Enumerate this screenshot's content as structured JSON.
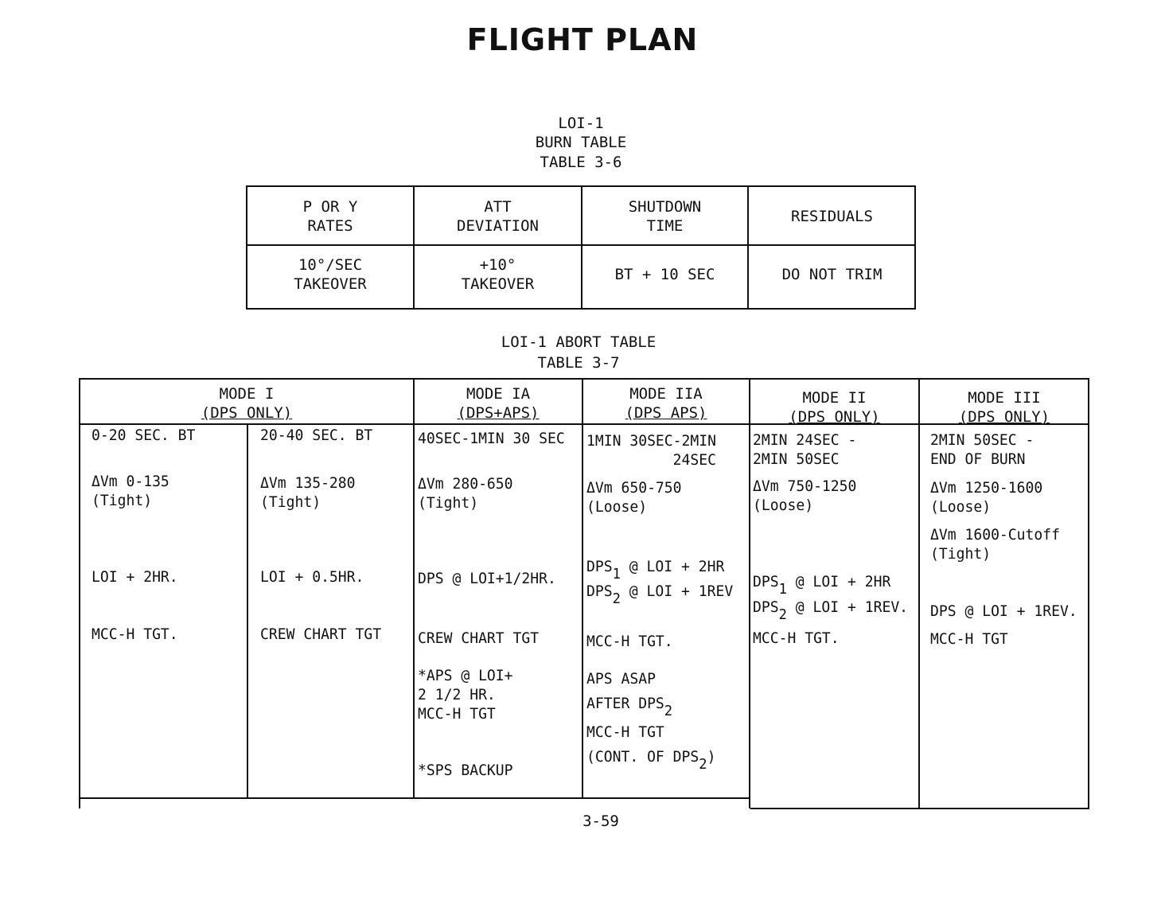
{
  "page_title": "FLIGHT PLAN",
  "burn_table": {
    "caption": [
      "LOI-1",
      "BURN TABLE",
      "TABLE 3-6"
    ],
    "headers": [
      [
        "P OR Y",
        "RATES"
      ],
      [
        "ATT",
        "DEVIATION"
      ],
      [
        "SHUTDOWN",
        "TIME"
      ],
      [
        "RESIDUALS"
      ]
    ],
    "values": [
      [
        "10°/SEC",
        "TAKEOVER"
      ],
      [
        "+10°",
        "TAKEOVER"
      ],
      [
        "BT + 10 SEC"
      ],
      [
        "DO NOT TRIM"
      ]
    ]
  },
  "abort_table": {
    "caption": [
      "LOI-1 ABORT TABLE",
      "TABLE 3-7"
    ],
    "modes": [
      {
        "name": "MODE I",
        "engines": "(DPS ONLY)"
      },
      {
        "name": "MODE IA",
        "engines": "(DPS+APS)"
      },
      {
        "name": "MODE IIA",
        "engines": "(DPS APS)"
      },
      {
        "name": "MODE II",
        "engines": "(DPS ONLY)"
      },
      {
        "name": "MODE III",
        "engines": "(DPS ONLY)"
      }
    ],
    "columns": [
      [
        [
          [
            {
              "t": "0-20 SEC. BT"
            }
          ]
        ],
        [
          [
            {
              "t": "ΔVm 0-135"
            }
          ],
          [
            {
              "t": "(Tight)"
            }
          ]
        ],
        [
          [
            {
              "t": "LOI + 2HR."
            }
          ]
        ],
        [
          [
            {
              "t": "MCC-H TGT."
            }
          ]
        ]
      ],
      [
        [
          [
            {
              "t": "20-40 SEC. BT"
            }
          ]
        ],
        [
          [
            {
              "t": "ΔVm 135-280"
            }
          ],
          [
            {
              "t": "(Tight)"
            }
          ]
        ],
        [
          [
            {
              "t": "LOI + 0.5HR."
            }
          ]
        ],
        [
          [
            {
              "t": "CREW CHART TGT"
            }
          ]
        ]
      ],
      [
        [
          [
            {
              "t": "40SEC-1MIN 30 SEC"
            }
          ]
        ],
        [
          [
            {
              "t": "ΔVm 280-650"
            }
          ],
          [
            {
              "t": "(Tight)"
            }
          ]
        ],
        [
          [
            {
              "t": "DPS @ LOI+1/2HR."
            }
          ]
        ],
        [
          [
            {
              "t": "CREW CHART TGT"
            }
          ]
        ],
        [
          [
            {
              "t": "*APS @ LOI+"
            }
          ],
          [
            {
              "t": "2 1/2 HR."
            }
          ],
          [
            {
              "t": "MCC-H TGT"
            }
          ]
        ],
        [
          [
            {
              "t": "*SPS BACKUP"
            }
          ]
        ]
      ],
      [
        [
          [
            {
              "t": "1MIN 30SEC-2MIN"
            }
          ],
          [
            {
              "t": "          24SEC"
            }
          ]
        ],
        [
          [
            {
              "t": "ΔVm 650-750"
            }
          ],
          [
            {
              "t": "(Loose)"
            }
          ]
        ],
        [
          [
            {
              "t": "DPS"
            },
            {
              "t": "1",
              "sub": true
            },
            {
              "t": " @ LOI + 2HR"
            }
          ],
          [
            {
              "t": "DPS"
            },
            {
              "t": "2",
              "sub": true
            },
            {
              "t": " @ LOI + 1REV"
            }
          ]
        ],
        [
          [
            {
              "t": "MCC-H TGT."
            }
          ]
        ],
        [
          [
            {
              "t": "APS ASAP"
            }
          ],
          [
            {
              "t": "AFTER DPS"
            },
            {
              "t": "2",
              "sub": true
            }
          ]
        ],
        [
          [
            {
              "t": "MCC-H TGT"
            }
          ],
          [
            {
              "t": "(CONT. OF DPS"
            },
            {
              "t": "2",
              "sub": true
            },
            {
              "t": ")"
            }
          ]
        ]
      ],
      [
        [
          [
            {
              "t": "2MIN 24SEC -"
            }
          ],
          [
            {
              "t": "2MIN 50SEC"
            }
          ]
        ],
        [
          [
            {
              "t": "ΔVm 750-1250"
            }
          ],
          [
            {
              "t": "(Loose)"
            }
          ]
        ],
        [
          [
            {
              "t": "DPS"
            },
            {
              "t": "1",
              "sub": true
            },
            {
              "t": " @ LOI + 2HR"
            }
          ]
        ],
        [
          [
            {
              "t": "DPS"
            },
            {
              "t": "2",
              "sub": true
            },
            {
              "t": " @ LOI + 1REV."
            }
          ]
        ],
        [
          [
            {
              "t": "MCC-H TGT."
            }
          ]
        ]
      ],
      [
        [
          [
            {
              "t": "2MIN 50SEC -"
            }
          ],
          [
            {
              "t": "END OF BURN"
            }
          ]
        ],
        [
          [
            {
              "t": "ΔVm 1250-1600"
            }
          ],
          [
            {
              "t": "(Loose)"
            }
          ]
        ],
        [
          [
            {
              "t": "ΔVm 1600-Cutoff"
            }
          ],
          [
            {
              "t": "(Tight)"
            }
          ]
        ],
        [
          [
            {
              "t": "DPS @ LOI + 1REV."
            }
          ]
        ],
        [
          [
            {
              "t": "MCC-H TGT"
            }
          ]
        ]
      ]
    ]
  },
  "page_number": "3-59"
}
